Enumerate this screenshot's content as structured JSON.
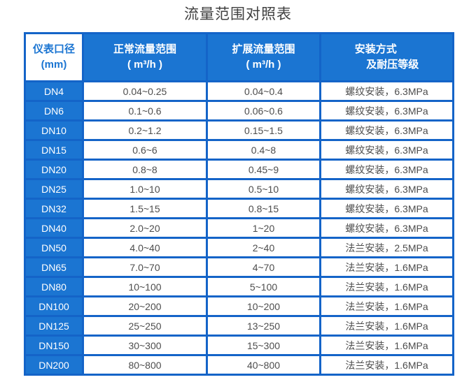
{
  "title": "流量范围对照表",
  "colors": {
    "cell_blue": "#1b75d2",
    "border_blue": "#1464c8",
    "header_text_on_blue": "#ffffff",
    "first_header_text": "#1b75d2",
    "body_text": "#4d4d4d",
    "title_text": "#404040"
  },
  "table": {
    "headers": [
      {
        "line1": "仪表口径",
        "line2": "(mm)"
      },
      {
        "line1": "正常流量范围",
        "line2": "( m³/h )"
      },
      {
        "line1": "扩展流量范围",
        "line2": "( m³/h )"
      },
      {
        "line1": "安装方式",
        "line2": "及耐压等级"
      }
    ],
    "rows": [
      {
        "diameter": "DN4",
        "normal_range": "0.04~0.25",
        "extended_range": "0.04~0.4",
        "installation": "螺纹安装，6.3MPa"
      },
      {
        "diameter": "DN6",
        "normal_range": "0.1~0.6",
        "extended_range": "0.06~0.6",
        "installation": "螺纹安装，6.3MPa"
      },
      {
        "diameter": "DN10",
        "normal_range": "0.2~1.2",
        "extended_range": "0.15~1.5",
        "installation": "螺纹安装，6.3MPa"
      },
      {
        "diameter": "DN15",
        "normal_range": "0.6~6",
        "extended_range": "0.4~8",
        "installation": "螺纹安装，6.3MPa"
      },
      {
        "diameter": "DN20",
        "normal_range": "0.8~8",
        "extended_range": "0.45~9",
        "installation": "螺纹安装，6.3MPa"
      },
      {
        "diameter": "DN25",
        "normal_range": "1.0~10",
        "extended_range": "0.5~10",
        "installation": "螺纹安装，6.3MPa"
      },
      {
        "diameter": "DN32",
        "normal_range": "1.5~15",
        "extended_range": "0.8~15",
        "installation": "螺纹安装，6.3MPa"
      },
      {
        "diameter": "DN40",
        "normal_range": "2.0~20",
        "extended_range": "1~20",
        "installation": "螺纹安装，6.3MPa"
      },
      {
        "diameter": "DN50",
        "normal_range": "4.0~40",
        "extended_range": "2~40",
        "installation": "法兰安装，2.5MPa"
      },
      {
        "diameter": "DN65",
        "normal_range": "7.0~70",
        "extended_range": "4~70",
        "installation": "法兰安装，1.6MPa"
      },
      {
        "diameter": "DN80",
        "normal_range": "10~100",
        "extended_range": "5~100",
        "installation": "法兰安装，1.6MPa"
      },
      {
        "diameter": "DN100",
        "normal_range": "20~200",
        "extended_range": "10~200",
        "installation": "法兰安装，1.6MPa"
      },
      {
        "diameter": "DN125",
        "normal_range": "25~250",
        "extended_range": "13~250",
        "installation": "法兰安装，1.6MPa"
      },
      {
        "diameter": "DN150",
        "normal_range": "30~300",
        "extended_range": "15~300",
        "installation": "法兰安装，1.6MPa"
      },
      {
        "diameter": "DN200",
        "normal_range": "80~800",
        "extended_range": "40~800",
        "installation": "法兰安装，1.6MPa"
      }
    ]
  }
}
